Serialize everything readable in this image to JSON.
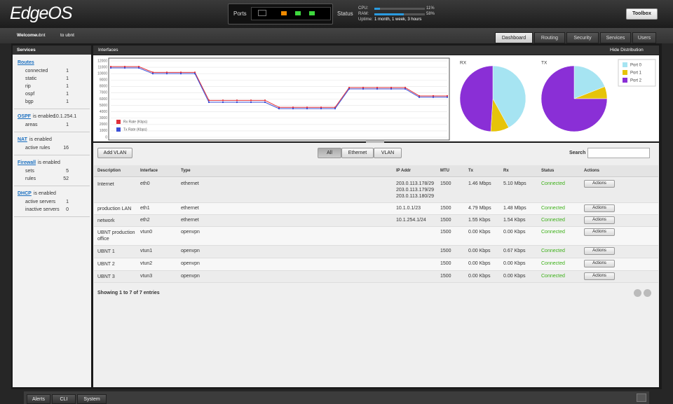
{
  "header": {
    "logo": "EdgeOS",
    "ports_label": "Ports",
    "status": {
      "label": "Status",
      "cpu": {
        "label": "CPU:",
        "value": 11,
        "value_label": "11%"
      },
      "ram": {
        "label": "RAM:",
        "value": 58,
        "value_label": "58%"
      },
      "uptime": {
        "label": "Uptime:",
        "value": "1 month, 1 week, 3 hours"
      }
    },
    "toolbox": "Toolbox"
  },
  "welcome": {
    "prefix": "Welcome",
    "user": "ubnt",
    "suffix": "to ubnt"
  },
  "tabs": [
    "Dashboard",
    "Routing",
    "Security",
    "Services",
    "Users"
  ],
  "sidebar": {
    "title": "Services",
    "sections": [
      {
        "link": "Routes",
        "rows": [
          {
            "label": "connected",
            "value": 1
          },
          {
            "label": "static",
            "value": 1
          },
          {
            "label": "rip",
            "value": 1
          },
          {
            "label": "ospf",
            "value": 1
          },
          {
            "label": "bgp",
            "value": 1
          }
        ]
      },
      {
        "link": "OSPF",
        "status": "is enabled",
        "detail": "10.1.254.1",
        "rows": [
          {
            "label": "areas",
            "value": 1
          }
        ]
      },
      {
        "link": "NAT",
        "status": "is enabled",
        "rows": [
          {
            "label": "active rules",
            "value": 16
          }
        ]
      },
      {
        "link": "Firewall",
        "status": "is enabled",
        "rows": [
          {
            "label": "sets",
            "value": 5
          },
          {
            "label": "rules",
            "value": 52
          }
        ]
      },
      {
        "link": "DHCP",
        "status": "is enabled",
        "rows": [
          {
            "label": "active servers",
            "value": 1
          },
          {
            "label": "inactive servers",
            "value": 0
          }
        ]
      }
    ]
  },
  "interfaces": {
    "title": "Interfaces",
    "hide_distribution": "Hide Distribution",
    "chart_data": [
      {
        "type": "line",
        "ylim": [
          0,
          12000
        ],
        "yticks": [
          0,
          1000,
          2000,
          3000,
          4000,
          5000,
          6000,
          7000,
          8000,
          9000,
          10000,
          11000,
          12000
        ],
        "grid": true,
        "series": [
          {
            "name": "Rx Rate (Kbps)",
            "color": "#e0303a",
            "values": [
              11100,
              11100,
              11100,
              10200,
              10200,
              10200,
              10200,
              5800,
              5800,
              5800,
              5800,
              5800,
              4700,
              4700,
              4700,
              4700,
              4700,
              7800,
              7800,
              7800,
              7800,
              7800,
              6500,
              6500,
              6500
            ]
          },
          {
            "name": "Tx Rate (Kbps)",
            "color": "#3a4fd8",
            "values": [
              10900,
              10900,
              10900,
              10000,
              10000,
              10000,
              10000,
              5500,
              5500,
              5500,
              5500,
              5500,
              4500,
              4500,
              4500,
              4500,
              4500,
              7600,
              7600,
              7600,
              7600,
              7600,
              6300,
              6300,
              6300
            ]
          }
        ]
      },
      {
        "type": "pie",
        "title": "RX",
        "categories": [
          "Port 0",
          "Port 1",
          "Port 2"
        ],
        "colors": [
          "#a6e4f2",
          "#e6c40a",
          "#8a2fd6"
        ],
        "values": [
          42,
          9,
          49
        ]
      },
      {
        "type": "pie",
        "title": "TX",
        "categories": [
          "Port 0",
          "Port 1",
          "Port 2"
        ],
        "colors": [
          "#a6e4f2",
          "#e6c40a",
          "#8a2fd6"
        ],
        "values": [
          19,
          6,
          75
        ]
      }
    ]
  },
  "toolbar": {
    "add_vlan": "Add VLAN",
    "filters": [
      "All",
      "Ethernet",
      "VLAN"
    ],
    "search": "Search"
  },
  "table": {
    "columns": [
      "Description",
      "Interface",
      "Type",
      "IP Addr",
      "MTU",
      "Tx",
      "Rx",
      "Status",
      "Actions"
    ],
    "action_label": "Actions",
    "rows": [
      [
        "Internet",
        "eth0",
        "ethernet",
        [
          "203.0.113.178/29",
          "203.0.113.179/29",
          "203.0.113.180/29"
        ],
        1500,
        "1.46 Mbps",
        "5.10 Mbps",
        "Connected"
      ],
      [
        "production LAN",
        "eth1",
        "ethernet",
        [
          "10.1.0.1/23"
        ],
        1500,
        "4.79 Mbps",
        "1.48 Mbps",
        "Connected"
      ],
      [
        "network",
        "eth2",
        "ethernet",
        [
          "10.1.254.1/24"
        ],
        1500,
        "1.55 Kbps",
        "1.54 Kbps",
        "Connected"
      ],
      [
        "UBNT production office",
        "vtun0",
        "openvpn",
        [],
        1500,
        "0.00 Kbps",
        "0.00 Kbps",
        "Connected"
      ],
      [
        "UBNT 1",
        "vtun1",
        "openvpn",
        [],
        1500,
        "0.00 Kbps",
        "0.67 Kbps",
        "Connected"
      ],
      [
        "UBNT 2",
        "vtun2",
        "openvpn",
        [],
        1500,
        "0.00 Kbps",
        "0.00 Kbps",
        "Connected"
      ],
      [
        "UBNT 3",
        "vtun3",
        "openvpn",
        [],
        1500,
        "0.00 Kbps",
        "0.00 Kbps",
        "Connected"
      ]
    ],
    "footer": "Showing 1 to 7 of 7 entries"
  },
  "bottom_tabs": [
    "Alerts",
    "CLI",
    "System"
  ]
}
